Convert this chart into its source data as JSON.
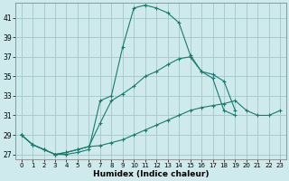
{
  "xlabel": "Humidex (Indice chaleur)",
  "bg_color": "#ceeaec",
  "grid_color": "#aaccce",
  "line_color": "#1a7a6e",
  "xlim": [
    -0.5,
    23.5
  ],
  "ylim": [
    26.5,
    42.5
  ],
  "yticks": [
    27,
    29,
    31,
    33,
    35,
    37,
    39,
    41
  ],
  "xticks": [
    0,
    1,
    2,
    3,
    4,
    5,
    6,
    7,
    8,
    9,
    10,
    11,
    12,
    13,
    14,
    15,
    16,
    17,
    18,
    19,
    20,
    21,
    22,
    23
  ],
  "line1_x": [
    0,
    1,
    2,
    3,
    4,
    5,
    6,
    7,
    8,
    9,
    10,
    11,
    12,
    13,
    14,
    15,
    16,
    17,
    18,
    19,
    20,
    21,
    22,
    23
  ],
  "line1_y": [
    29.0,
    28.0,
    27.5,
    27.0,
    27.0,
    27.2,
    27.5,
    32.5,
    33.0,
    38.0,
    42.0,
    42.3,
    42.0,
    41.5,
    40.5,
    37.2,
    35.5,
    34.8,
    31.5,
    31.0,
    null,
    null,
    null,
    null
  ],
  "line2_x": [
    0,
    1,
    2,
    3,
    4,
    5,
    6,
    7,
    8,
    9,
    10,
    11,
    12,
    13,
    14,
    15,
    16,
    17,
    18,
    19,
    20,
    21,
    22,
    23
  ],
  "line2_y": [
    29.0,
    28.0,
    27.5,
    27.0,
    27.2,
    27.5,
    27.8,
    30.2,
    32.5,
    33.2,
    34.0,
    35.0,
    35.5,
    36.2,
    36.8,
    37.0,
    35.5,
    35.2,
    34.5,
    31.5,
    null,
    null,
    null,
    null
  ],
  "line3_x": [
    0,
    1,
    2,
    3,
    4,
    5,
    6,
    7,
    8,
    9,
    10,
    11,
    12,
    13,
    14,
    15,
    16,
    17,
    18,
    19,
    20,
    21,
    22,
    23
  ],
  "line3_y": [
    29.0,
    28.0,
    27.5,
    27.0,
    27.2,
    27.5,
    27.8,
    27.9,
    28.2,
    28.5,
    29.0,
    29.5,
    30.0,
    30.5,
    31.0,
    31.5,
    31.8,
    32.0,
    32.2,
    32.5,
    31.5,
    31.0,
    31.0,
    31.5
  ]
}
